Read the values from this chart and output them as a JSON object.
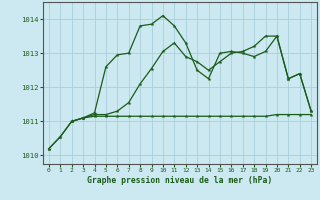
{
  "title": "Graphe pression niveau de la mer (hPa)",
  "background_color": "#cce8f0",
  "grid_color": "#aacfdb",
  "line_color": "#1a5c1a",
  "xlim": [
    -0.5,
    23.5
  ],
  "ylim": [
    1009.75,
    1014.5
  ],
  "yticks": [
    1010,
    1011,
    1012,
    1013,
    1014
  ],
  "xticks": [
    0,
    1,
    2,
    3,
    4,
    5,
    6,
    7,
    8,
    9,
    10,
    11,
    12,
    13,
    14,
    15,
    16,
    17,
    18,
    19,
    20,
    21,
    22,
    23
  ],
  "series1_x": [
    0,
    1,
    2,
    3,
    4,
    5,
    6,
    7,
    8,
    9,
    10,
    11,
    12,
    13,
    14,
    15,
    16,
    17,
    18,
    19,
    20,
    21,
    22,
    23
  ],
  "series1_y": [
    1010.2,
    1010.55,
    1011.0,
    1011.1,
    1011.25,
    1012.6,
    1012.95,
    1013.0,
    1013.8,
    1013.85,
    1014.1,
    1013.8,
    1013.3,
    1012.5,
    1012.25,
    1013.0,
    1013.05,
    1013.0,
    1012.9,
    1013.05,
    1013.5,
    1012.25,
    1012.4,
    1011.3
  ],
  "series2_x": [
    0,
    1,
    2,
    3,
    4,
    5,
    6,
    7,
    8,
    9,
    10,
    11,
    12,
    13,
    14,
    15,
    16,
    17,
    18,
    19,
    20,
    21,
    22,
    23
  ],
  "series2_y": [
    1010.2,
    1010.55,
    1011.0,
    1011.1,
    1011.15,
    1011.15,
    1011.15,
    1011.15,
    1011.15,
    1011.15,
    1011.15,
    1011.15,
    1011.15,
    1011.15,
    1011.15,
    1011.15,
    1011.15,
    1011.15,
    1011.15,
    1011.15,
    1011.2,
    1011.2,
    1011.2,
    1011.2
  ],
  "series3_x": [
    2,
    3,
    4,
    5,
    6,
    7,
    8,
    9,
    10,
    11,
    12,
    13,
    14,
    15,
    16,
    17,
    18,
    19,
    20,
    21,
    22,
    23
  ],
  "series3_y": [
    1011.0,
    1011.1,
    1011.2,
    1011.2,
    1011.3,
    1011.55,
    1012.1,
    1012.55,
    1013.05,
    1013.3,
    1012.9,
    1012.75,
    1012.5,
    1012.75,
    1013.0,
    1013.05,
    1013.2,
    1013.5,
    1013.5,
    1012.25,
    1012.4,
    1011.3
  ],
  "spine_color": "#555555",
  "tick_color": "#1a5c1a",
  "label_color": "#1a5c1a"
}
